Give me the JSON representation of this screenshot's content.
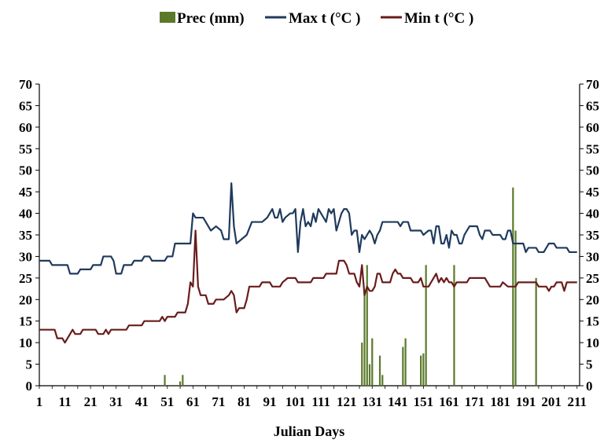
{
  "chart_data": {
    "type": "bar+line",
    "xlabel": "Julian Days",
    "x_tick_labels": [
      "1",
      "11",
      "21",
      "31",
      "41",
      "51",
      "61",
      "71",
      "81",
      "91",
      "101",
      "111",
      "121",
      "131",
      "141",
      "151",
      "161",
      "171",
      "181",
      "191",
      "201",
      "211"
    ],
    "ylim": [
      0,
      70
    ],
    "y_ticks": [
      0,
      5,
      10,
      15,
      20,
      25,
      30,
      35,
      40,
      45,
      50,
      55,
      60,
      65,
      70
    ],
    "y_tick_labels": [
      "0",
      "5",
      "10",
      "15",
      "20",
      "25",
      "30",
      "35",
      "40",
      "45",
      "50",
      "55",
      "60",
      "65",
      "70"
    ],
    "y_right_ticks": [
      0,
      5,
      10,
      15,
      20,
      25,
      30,
      35,
      40,
      45,
      50,
      55,
      60,
      65,
      70
    ],
    "y_right_tick_labels": [
      "0",
      "5",
      "10",
      "15",
      "20",
      "25",
      "30",
      "35",
      "40",
      "45",
      "50",
      "55",
      "60",
      "65",
      "70"
    ],
    "x_range": [
      1,
      212
    ],
    "legend_position": "top",
    "grid": false,
    "series": [
      {
        "name": "Prec (mm)",
        "type": "bar",
        "color": "#5a7a2a",
        "points": [
          [
            50,
            2.5
          ],
          [
            56,
            1
          ],
          [
            57,
            2.5
          ],
          [
            127,
            10
          ],
          [
            128,
            22
          ],
          [
            129,
            28
          ],
          [
            130,
            5
          ],
          [
            131,
            11
          ],
          [
            134,
            7
          ],
          [
            135,
            2.5
          ],
          [
            143,
            9
          ],
          [
            144,
            11
          ],
          [
            150,
            7
          ],
          [
            151,
            7.5
          ],
          [
            152,
            28
          ],
          [
            163,
            28
          ],
          [
            186,
            46
          ],
          [
            187,
            36
          ],
          [
            195,
            25
          ]
        ]
      },
      {
        "name": "Max t (°C )",
        "type": "line",
        "color": "#1f3a5c",
        "points": [
          [
            1,
            29
          ],
          [
            5,
            29
          ],
          [
            6,
            28
          ],
          [
            12,
            28
          ],
          [
            13,
            26
          ],
          [
            16,
            26
          ],
          [
            17,
            27
          ],
          [
            21,
            27
          ],
          [
            22,
            28
          ],
          [
            25,
            28
          ],
          [
            26,
            30
          ],
          [
            29,
            30
          ],
          [
            30,
            29
          ],
          [
            31,
            26
          ],
          [
            33,
            26
          ],
          [
            34,
            28
          ],
          [
            37,
            28
          ],
          [
            38,
            29
          ],
          [
            41,
            29
          ],
          [
            42,
            30
          ],
          [
            44,
            30
          ],
          [
            45,
            29
          ],
          [
            50,
            29
          ],
          [
            51,
            30
          ],
          [
            53,
            30
          ],
          [
            54,
            33
          ],
          [
            59,
            33
          ],
          [
            60,
            33
          ],
          [
            61,
            40
          ],
          [
            62,
            39
          ],
          [
            65,
            39
          ],
          [
            66,
            38
          ],
          [
            67,
            37
          ],
          [
            68,
            36
          ],
          [
            70,
            37
          ],
          [
            72,
            36
          ],
          [
            73,
            34
          ],
          [
            75,
            34
          ],
          [
            76,
            47
          ],
          [
            77,
            37
          ],
          [
            78,
            33
          ],
          [
            80,
            34
          ],
          [
            82,
            35
          ],
          [
            84,
            38
          ],
          [
            88,
            38
          ],
          [
            90,
            39
          ],
          [
            92,
            41
          ],
          [
            93,
            39
          ],
          [
            94,
            39
          ],
          [
            95,
            41
          ],
          [
            96,
            38
          ],
          [
            97,
            39
          ],
          [
            99,
            40
          ],
          [
            100,
            40
          ],
          [
            101,
            41
          ],
          [
            102,
            31
          ],
          [
            103,
            38
          ],
          [
            104,
            41
          ],
          [
            105,
            37
          ],
          [
            106,
            38
          ],
          [
            107,
            37
          ],
          [
            108,
            40
          ],
          [
            109,
            38
          ],
          [
            110,
            41
          ],
          [
            111,
            40
          ],
          [
            112,
            39
          ],
          [
            113,
            38
          ],
          [
            114,
            41
          ],
          [
            115,
            40
          ],
          [
            116,
            41
          ],
          [
            117,
            36
          ],
          [
            118,
            38
          ],
          [
            119,
            40
          ],
          [
            120,
            41
          ],
          [
            121,
            41
          ],
          [
            122,
            40
          ],
          [
            123,
            35
          ],
          [
            124,
            36
          ],
          [
            125,
            36
          ],
          [
            126,
            31
          ],
          [
            127,
            35
          ],
          [
            128,
            34
          ],
          [
            129,
            35
          ],
          [
            130,
            36
          ],
          [
            131,
            35
          ],
          [
            132,
            33
          ],
          [
            133,
            35
          ],
          [
            134,
            36
          ],
          [
            135,
            38
          ],
          [
            141,
            38
          ],
          [
            142,
            37
          ],
          [
            143,
            38
          ],
          [
            145,
            38
          ],
          [
            146,
            36
          ],
          [
            150,
            36
          ],
          [
            151,
            35
          ],
          [
            153,
            36
          ],
          [
            154,
            36
          ],
          [
            155,
            33
          ],
          [
            156,
            37
          ],
          [
            157,
            37
          ],
          [
            158,
            33
          ],
          [
            159,
            33
          ],
          [
            160,
            35
          ],
          [
            161,
            32
          ],
          [
            162,
            36
          ],
          [
            163,
            35
          ],
          [
            164,
            35
          ],
          [
            165,
            33
          ],
          [
            166,
            33
          ],
          [
            167,
            35
          ],
          [
            169,
            37
          ],
          [
            172,
            37
          ],
          [
            173,
            35
          ],
          [
            174,
            34
          ],
          [
            175,
            36
          ],
          [
            177,
            36
          ],
          [
            178,
            35
          ],
          [
            181,
            35
          ],
          [
            182,
            34
          ],
          [
            183,
            34
          ],
          [
            184,
            36
          ],
          [
            185,
            36
          ],
          [
            186,
            33
          ],
          [
            189,
            33
          ],
          [
            190,
            33
          ],
          [
            191,
            31
          ],
          [
            192,
            32
          ],
          [
            195,
            32
          ],
          [
            196,
            31
          ],
          [
            197,
            31
          ],
          [
            198,
            31
          ],
          [
            200,
            33
          ],
          [
            202,
            33
          ],
          [
            203,
            32
          ],
          [
            206,
            32
          ],
          [
            207,
            32
          ],
          [
            208,
            31
          ],
          [
            209,
            31
          ],
          [
            210,
            31
          ],
          [
            211,
            31
          ]
        ]
      },
      {
        "name": "Min t (°C )",
        "type": "line",
        "color": "#6a1c1c",
        "points": [
          [
            1,
            13
          ],
          [
            7,
            13
          ],
          [
            8,
            11
          ],
          [
            10,
            11
          ],
          [
            11,
            10
          ],
          [
            13,
            12
          ],
          [
            14,
            13
          ],
          [
            15,
            12
          ],
          [
            17,
            12
          ],
          [
            18,
            13
          ],
          [
            23,
            13
          ],
          [
            24,
            12
          ],
          [
            26,
            12
          ],
          [
            27,
            13
          ],
          [
            28,
            12
          ],
          [
            29,
            13
          ],
          [
            35,
            13
          ],
          [
            36,
            14
          ],
          [
            41,
            14
          ],
          [
            42,
            15
          ],
          [
            48,
            15
          ],
          [
            49,
            16
          ],
          [
            50,
            15
          ],
          [
            51,
            16
          ],
          [
            54,
            16
          ],
          [
            55,
            17
          ],
          [
            58,
            17
          ],
          [
            59,
            19
          ],
          [
            60,
            24
          ],
          [
            61,
            23
          ],
          [
            62,
            36
          ],
          [
            63,
            23
          ],
          [
            64,
            21
          ],
          [
            66,
            21
          ],
          [
            67,
            19
          ],
          [
            69,
            19
          ],
          [
            70,
            20
          ],
          [
            73,
            20
          ],
          [
            75,
            21
          ],
          [
            76,
            22
          ],
          [
            77,
            21
          ],
          [
            78,
            17
          ],
          [
            79,
            18
          ],
          [
            81,
            18
          ],
          [
            82,
            20
          ],
          [
            83,
            23
          ],
          [
            87,
            23
          ],
          [
            88,
            24
          ],
          [
            91,
            24
          ],
          [
            92,
            23
          ],
          [
            95,
            23
          ],
          [
            96,
            24
          ],
          [
            98,
            25
          ],
          [
            101,
            25
          ],
          [
            102,
            24
          ],
          [
            107,
            24
          ],
          [
            108,
            25
          ],
          [
            112,
            25
          ],
          [
            113,
            26
          ],
          [
            117,
            26
          ],
          [
            118,
            29
          ],
          [
            120,
            29
          ],
          [
            121,
            28
          ],
          [
            122,
            26
          ],
          [
            124,
            26
          ],
          [
            125,
            24
          ],
          [
            126,
            23
          ],
          [
            127,
            28
          ],
          [
            128,
            21
          ],
          [
            129,
            23
          ],
          [
            130,
            22
          ],
          [
            131,
            22
          ],
          [
            132,
            23
          ],
          [
            133,
            26
          ],
          [
            134,
            26
          ],
          [
            135,
            24
          ],
          [
            136,
            24
          ],
          [
            138,
            24
          ],
          [
            139,
            26
          ],
          [
            140,
            27
          ],
          [
            141,
            26
          ],
          [
            142,
            26
          ],
          [
            143,
            25
          ],
          [
            146,
            25
          ],
          [
            147,
            24
          ],
          [
            149,
            24
          ],
          [
            150,
            25
          ],
          [
            151,
            23
          ],
          [
            152,
            23
          ],
          [
            153,
            23
          ],
          [
            154,
            24
          ],
          [
            156,
            26
          ],
          [
            157,
            24
          ],
          [
            158,
            25
          ],
          [
            159,
            24
          ],
          [
            160,
            25
          ],
          [
            161,
            24
          ],
          [
            162,
            24
          ],
          [
            163,
            23
          ],
          [
            164,
            24
          ],
          [
            168,
            24
          ],
          [
            169,
            25
          ],
          [
            175,
            25
          ],
          [
            176,
            24
          ],
          [
            177,
            23
          ],
          [
            181,
            23
          ],
          [
            182,
            24
          ],
          [
            184,
            23
          ],
          [
            187,
            23
          ],
          [
            188,
            24
          ],
          [
            195,
            24
          ],
          [
            196,
            23
          ],
          [
            199,
            23
          ],
          [
            200,
            22
          ],
          [
            201,
            23
          ],
          [
            202,
            23
          ],
          [
            203,
            24
          ],
          [
            205,
            24
          ],
          [
            206,
            22
          ],
          [
            207,
            24
          ],
          [
            211,
            24
          ]
        ]
      }
    ]
  }
}
